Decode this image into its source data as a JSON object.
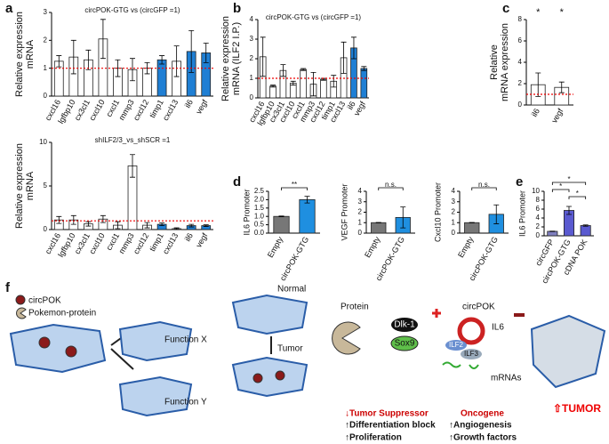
{
  "chart_data": [
    {
      "type": "bar",
      "panel": "a",
      "note": "circPOK-GTG vs (circGFP =1)",
      "ylabel": [
        "Relative expression",
        "mRNA"
      ],
      "categories": [
        "cxcl16",
        "lgfbp10",
        "cx3cl1",
        "cxcl10",
        "cxcl1",
        "mmp3",
        "cxcl12",
        "timp1",
        "cxcl13",
        "il6",
        "vegf"
      ],
      "values": [
        1.25,
        1.4,
        1.3,
        2.05,
        1.0,
        0.95,
        1.0,
        1.3,
        1.25,
        1.6,
        1.55
      ],
      "errors": [
        0.2,
        0.6,
        0.35,
        0.7,
        0.3,
        0.4,
        0.2,
        0.15,
        0.55,
        0.75,
        0.35
      ],
      "colors": [
        "#ffffff",
        "#ffffff",
        "#ffffff",
        "#ffffff",
        "#ffffff",
        "#ffffff",
        "#ffffff",
        "#1f7fd4",
        "#ffffff",
        "#1f7fd4",
        "#1f7fd4"
      ],
      "ylim": [
        0,
        3
      ],
      "yticks": [
        0,
        1,
        2,
        3
      ],
      "ref_line": 1
    },
    {
      "type": "bar",
      "note": "shILF2/3_vs_shSCR =1",
      "ylabel": [
        "Relative expression",
        "mRNA"
      ],
      "categories": [
        "cxcl16",
        "lgfbp10",
        "cx3cl1",
        "cxcl10",
        "cxcl1",
        "mmp3",
        "cxcl12",
        "timp1",
        "cxcl13",
        "il6",
        "vegf"
      ],
      "values": [
        1.1,
        1.1,
        0.65,
        1.2,
        0.5,
        7.3,
        0.5,
        0.6,
        0.1,
        0.45,
        0.45
      ],
      "errors": [
        0.4,
        0.5,
        0.25,
        0.4,
        0.4,
        1.3,
        0.3,
        0.15,
        0.1,
        0.15,
        0.1
      ],
      "colors": [
        "#ffffff",
        "#ffffff",
        "#ffffff",
        "#ffffff",
        "#ffffff",
        "#ffffff",
        "#ffffff",
        "#1f7fd4",
        "#ffffff",
        "#1f7fd4",
        "#1f7fd4"
      ],
      "ylim": [
        0,
        10
      ],
      "yticks": [
        0,
        5,
        10
      ],
      "ref_line": 1
    },
    {
      "type": "bar",
      "panel": "b",
      "note": "circPOK-GTG vs (circGFP =1)",
      "ylabel": [
        "Relative expression",
        "mRNA (ILF2 I.P.)"
      ],
      "categories": [
        "cxcl16",
        "lgfbp10",
        "cx3cl1",
        "cxcl10",
        "cxcl1",
        "mmp3",
        "cxcl12",
        "timp1",
        "cxcl13",
        "il6",
        "vegf"
      ],
      "values": [
        2.1,
        0.6,
        1.4,
        0.75,
        1.45,
        0.7,
        0.95,
        0.85,
        2.05,
        2.55,
        1.5
      ],
      "errors": [
        1.0,
        0.05,
        0.3,
        0.1,
        0.05,
        0.6,
        0.05,
        0.3,
        0.8,
        0.55,
        0.1
      ],
      "colors": [
        "#ffffff",
        "#ffffff",
        "#ffffff",
        "#ffffff",
        "#ffffff",
        "#ffffff",
        "#ffffff",
        "#ffffff",
        "#ffffff",
        "#1f7fd4",
        "#1f7fd4"
      ],
      "ylim": [
        0,
        4
      ],
      "yticks": [
        0,
        1,
        2,
        3,
        4
      ],
      "ref_line": 1
    },
    {
      "type": "bar",
      "panel": "c",
      "ylabel": [
        "Relative",
        "mRNA expression"
      ],
      "categories": [
        "il6",
        "vegf"
      ],
      "values": [
        1.9,
        1.65
      ],
      "errors": [
        1.1,
        0.5
      ],
      "colors": [
        "#ffffff",
        "#ffffff"
      ],
      "annotations": [
        "*",
        "*"
      ],
      "ylim": [
        0,
        8
      ],
      "yticks": [
        0,
        2,
        4,
        6,
        8
      ],
      "ref_line": 1
    },
    {
      "type": "bar",
      "panel": "d",
      "ylabel": [
        "IL6 Promoter"
      ],
      "categories": [
        "Empty",
        "circPOK-GTG"
      ],
      "values": [
        1.0,
        2.0
      ],
      "errors": [
        0.02,
        0.2
      ],
      "colors": [
        "#777777",
        "#1f8fe0"
      ],
      "significance": [
        "**"
      ],
      "ylim": [
        0,
        2.5
      ],
      "yticks": [
        {
          "value": 0,
          "label": "0.0"
        },
        0.5,
        {
          "value": 1,
          "label": "1.0"
        },
        1.5,
        {
          "value": 2,
          "label": "2.0"
        },
        2.5
      ]
    },
    {
      "type": "bar",
      "ylabel": [
        "VEGF Promoter"
      ],
      "categories": [
        "Empty",
        "circPOK-GTG"
      ],
      "values": [
        1.0,
        1.5
      ],
      "errors": [
        0.02,
        1.0
      ],
      "colors": [
        "#777777",
        "#1f8fe0"
      ],
      "significance": [
        "n.s."
      ],
      "ylim": [
        0,
        4
      ],
      "yticks": [
        0,
        1,
        2,
        3,
        4
      ]
    },
    {
      "type": "bar",
      "ylabel": [
        "Cxcl10 Promoter"
      ],
      "categories": [
        "Empty",
        "circPOK-GTG"
      ],
      "values": [
        1.0,
        1.8
      ],
      "errors": [
        0.02,
        0.9
      ],
      "colors": [
        "#777777",
        "#1f8fe0"
      ],
      "significance": [
        "n.s."
      ],
      "ylim": [
        0,
        4
      ],
      "yticks": [
        0,
        1,
        2,
        3,
        4
      ]
    },
    {
      "type": "bar",
      "panel": "e",
      "ylabel": [
        "IL6 Promoter"
      ],
      "categories": [
        "circGFP",
        "circPOK-GTG",
        "cDNA POK"
      ],
      "values": [
        1.0,
        5.7,
        2.3
      ],
      "errors": [
        0.05,
        0.9,
        0.15
      ],
      "colors": [
        "#7f7fbf",
        "#5a5ad0",
        "#5a5ad0"
      ],
      "significance": [
        "*",
        "*",
        "*"
      ],
      "ylim": [
        0,
        10
      ],
      "yticks": [
        0,
        2,
        4,
        6,
        8,
        10
      ]
    }
  ],
  "diagram": {
    "panel": "f",
    "legend": [
      "circPOK",
      "Pokemon-protein"
    ],
    "functions": [
      "Function X",
      "Function Y"
    ],
    "states": [
      "Normal",
      "Tumor"
    ],
    "protein": "Protein",
    "targets": [
      "Dlk-1",
      "Sox9"
    ],
    "circ": "circPOK",
    "il6": "IL6",
    "factors": [
      "ILF2",
      "ILF3"
    ],
    "mrnas": "mRNAs",
    "suppressor": [
      "↓Tumor Suppressor",
      "↑Differentiation block",
      "↑Proliferation"
    ],
    "oncogene": [
      "Oncogene",
      "↑Angiogenesis",
      "↑Growth factors"
    ],
    "tumor": "⇧TUMOR"
  }
}
